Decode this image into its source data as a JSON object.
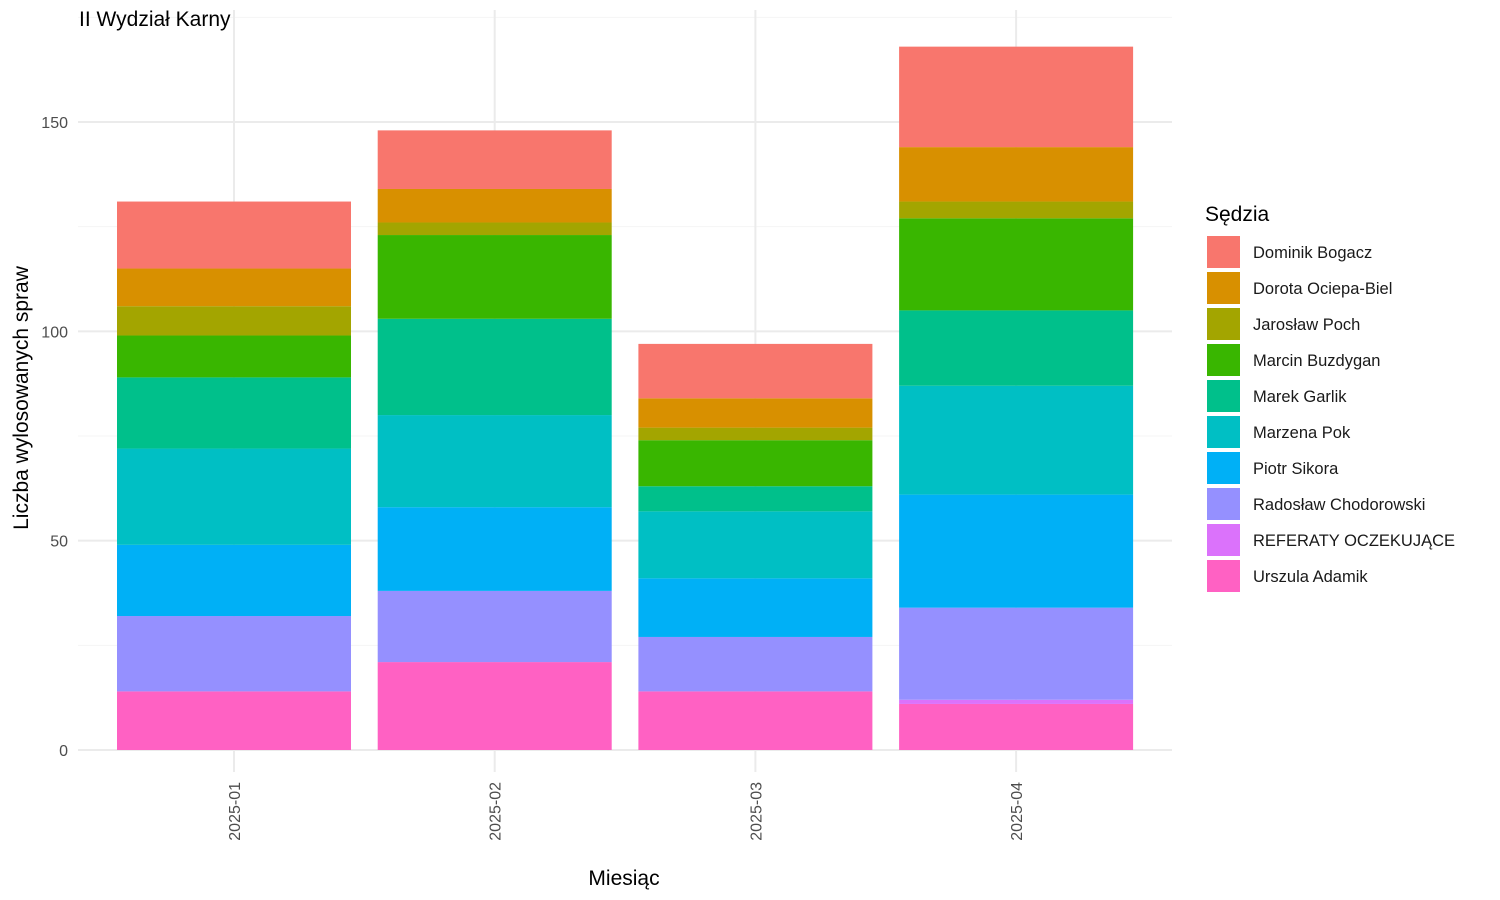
{
  "chart_data": {
    "type": "bar",
    "stacked": true,
    "title": "II Wydział Karny",
    "xlabel": "Miesiąc",
    "ylabel": "Liczba wylosowanych spraw",
    "categories": [
      "2025-01",
      "2025-02",
      "2025-03",
      "2025-04"
    ],
    "ylim": [
      0,
      175
    ],
    "yticks": [
      0,
      50,
      100,
      150
    ],
    "grid": true,
    "legend": {
      "title": "Sędzia",
      "position": "right"
    },
    "series": [
      {
        "name": "Urszula Adamik",
        "color": "#FF61C3",
        "values": [
          14,
          21,
          14,
          11
        ]
      },
      {
        "name": "REFERATY OCZEKUJĄCE",
        "color": "#DB72FB",
        "values": [
          0,
          0,
          0,
          1
        ]
      },
      {
        "name": "Radosław Chodorowski",
        "color": "#9590FF",
        "values": [
          18,
          17,
          13,
          22
        ]
      },
      {
        "name": "Piotr Sikora",
        "color": "#00B0F6",
        "values": [
          17,
          20,
          14,
          27
        ]
      },
      {
        "name": "Marzena Pok",
        "color": "#00BFC4",
        "values": [
          23,
          22,
          16,
          26
        ]
      },
      {
        "name": "Marek Garlik",
        "color": "#00C08B",
        "values": [
          17,
          23,
          6,
          18
        ]
      },
      {
        "name": "Marcin Buzdygan",
        "color": "#39B600",
        "values": [
          10,
          20,
          11,
          22
        ]
      },
      {
        "name": "Jarosław Poch",
        "color": "#A3A500",
        "values": [
          7,
          3,
          3,
          4
        ]
      },
      {
        "name": "Dorota Ociepa-Biel",
        "color": "#D89000",
        "values": [
          9,
          8,
          7,
          13
        ]
      },
      {
        "name": "Dominik Bogacz",
        "color": "#F8766D",
        "values": [
          16,
          14,
          13,
          24
        ]
      }
    ]
  }
}
